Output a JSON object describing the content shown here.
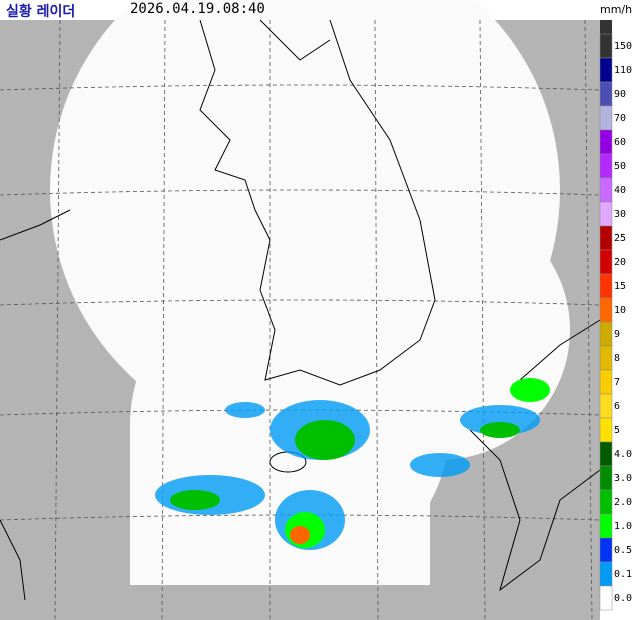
{
  "header": {
    "title": "실황 레이더",
    "timestamp": "2026.04.19.08:40",
    "unit": "mm/h"
  },
  "legend": {
    "items": [
      {
        "label": "150",
        "color": "#333333"
      },
      {
        "label": "110",
        "color": "#000390"
      },
      {
        "label": "90",
        "color": "#4c4eb1"
      },
      {
        "label": "70",
        "color": "#b3b4de"
      },
      {
        "label": "60",
        "color": "#9300e4"
      },
      {
        "label": "50",
        "color": "#b329ff"
      },
      {
        "label": "40",
        "color": "#c969ff"
      },
      {
        "label": "30",
        "color": "#e0a9ff"
      },
      {
        "label": "25",
        "color": "#b40000"
      },
      {
        "label": "20",
        "color": "#d20000"
      },
      {
        "label": "15",
        "color": "#ff3300"
      },
      {
        "label": "10",
        "color": "#ff6600"
      },
      {
        "label": "9",
        "color": "#ccaa00"
      },
      {
        "label": "8",
        "color": "#e0b900"
      },
      {
        "label": "7",
        "color": "#f9cd00"
      },
      {
        "label": "6",
        "color": "#ffdc1f"
      },
      {
        "label": "5",
        "color": "#ffe100"
      },
      {
        "label": "4.0",
        "color": "#005a00"
      },
      {
        "label": "3.0",
        "color": "#008c00"
      },
      {
        "label": "2.0",
        "color": "#00be00"
      },
      {
        "label": "1.0",
        "color": "#00ff00"
      },
      {
        "label": "0.5",
        "color": "#0033f5"
      },
      {
        "label": "0.1",
        "color": "#009bf5"
      },
      {
        "label": "0.0",
        "color": "#ffffff"
      }
    ]
  }
}
